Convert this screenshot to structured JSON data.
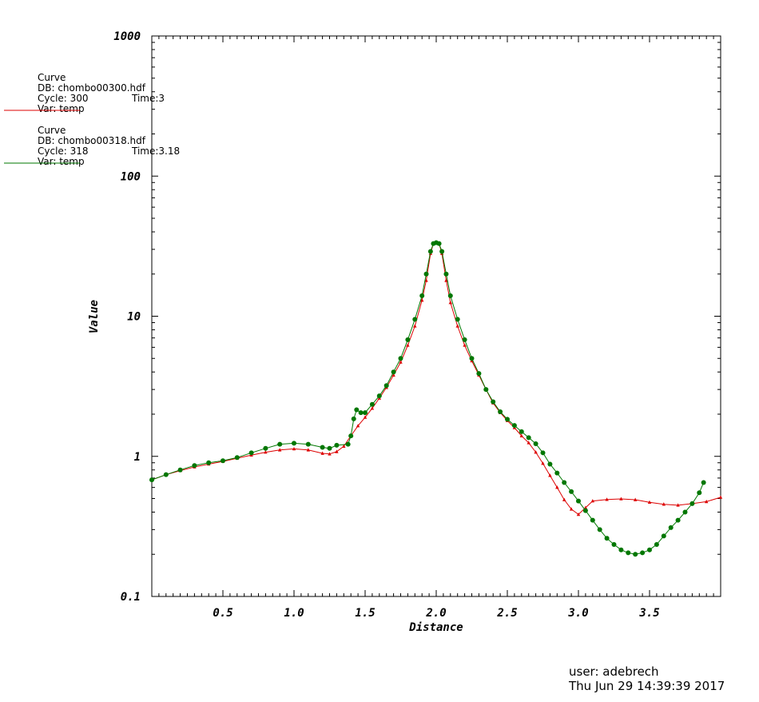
{
  "chart_data": {
    "type": "line",
    "xlabel": "Distance",
    "ylabel": "Value",
    "xlim": [
      0.0,
      4.0
    ],
    "ylim": [
      0.1,
      1000
    ],
    "yscale": "log",
    "x_ticks": [
      0.5,
      1.0,
      1.5,
      2.0,
      2.5,
      3.0,
      3.5
    ],
    "x_tick_labels": [
      "0.5",
      "1.0",
      "1.5",
      "2.0",
      "2.5",
      "3.0",
      "3.5"
    ],
    "y_ticks": [
      0.1,
      1,
      10,
      100,
      1000
    ],
    "y_tick_labels": [
      "0.1",
      "1",
      "10",
      "100",
      "1000"
    ],
    "grid": false,
    "legend_placement": "top-left",
    "series": [
      {
        "name": "Curve",
        "db": "DB: chombo00300.hdf",
        "cycle": "Cycle: 300",
        "time": "Time:3",
        "var": "Var: temp",
        "color": "#dd0000",
        "marker": "triangle",
        "points": [
          [
            0.0,
            0.68
          ],
          [
            0.1,
            0.74
          ],
          [
            0.2,
            0.79
          ],
          [
            0.3,
            0.84
          ],
          [
            0.4,
            0.88
          ],
          [
            0.5,
            0.92
          ],
          [
            0.6,
            0.97
          ],
          [
            0.7,
            1.02
          ],
          [
            0.8,
            1.07
          ],
          [
            0.9,
            1.11
          ],
          [
            1.0,
            1.13
          ],
          [
            1.1,
            1.11
          ],
          [
            1.2,
            1.05
          ],
          [
            1.25,
            1.04
          ],
          [
            1.3,
            1.08
          ],
          [
            1.35,
            1.18
          ],
          [
            1.4,
            1.4
          ],
          [
            1.45,
            1.65
          ],
          [
            1.5,
            1.9
          ],
          [
            1.55,
            2.2
          ],
          [
            1.6,
            2.6
          ],
          [
            1.65,
            3.1
          ],
          [
            1.7,
            3.8
          ],
          [
            1.75,
            4.7
          ],
          [
            1.8,
            6.2
          ],
          [
            1.85,
            8.5
          ],
          [
            1.9,
            13.0
          ],
          [
            1.93,
            18.0
          ],
          [
            1.96,
            28.0
          ],
          [
            1.98,
            33.0
          ],
          [
            2.0,
            33.5
          ],
          [
            2.02,
            33.0
          ],
          [
            2.04,
            28.0
          ],
          [
            2.07,
            18.0
          ],
          [
            2.1,
            12.5
          ],
          [
            2.15,
            8.5
          ],
          [
            2.2,
            6.2
          ],
          [
            2.25,
            4.8
          ],
          [
            2.3,
            3.8
          ],
          [
            2.35,
            3.0
          ],
          [
            2.4,
            2.4
          ],
          [
            2.45,
            2.05
          ],
          [
            2.5,
            1.8
          ],
          [
            2.55,
            1.6
          ],
          [
            2.6,
            1.4
          ],
          [
            2.65,
            1.25
          ],
          [
            2.7,
            1.07
          ],
          [
            2.75,
            0.89
          ],
          [
            2.8,
            0.73
          ],
          [
            2.85,
            0.6
          ],
          [
            2.9,
            0.49
          ],
          [
            2.95,
            0.42
          ],
          [
            3.0,
            0.385
          ],
          [
            3.05,
            0.43
          ],
          [
            3.1,
            0.48
          ],
          [
            3.2,
            0.492
          ],
          [
            3.3,
            0.497
          ],
          [
            3.4,
            0.49
          ],
          [
            3.5,
            0.47
          ],
          [
            3.6,
            0.455
          ],
          [
            3.7,
            0.448
          ],
          [
            3.8,
            0.46
          ],
          [
            3.9,
            0.475
          ],
          [
            4.0,
            0.51
          ]
        ]
      },
      {
        "name": "Curve",
        "db": "DB: chombo00318.hdf",
        "cycle": "Cycle: 318",
        "time": "Time:3.18",
        "var": "Var: temp",
        "color": "#007700",
        "marker": "circle",
        "points": [
          [
            0.0,
            0.68
          ],
          [
            0.1,
            0.74
          ],
          [
            0.2,
            0.8
          ],
          [
            0.3,
            0.86
          ],
          [
            0.4,
            0.9
          ],
          [
            0.5,
            0.93
          ],
          [
            0.6,
            0.98
          ],
          [
            0.7,
            1.06
          ],
          [
            0.8,
            1.14
          ],
          [
            0.9,
            1.22
          ],
          [
            1.0,
            1.24
          ],
          [
            1.1,
            1.22
          ],
          [
            1.2,
            1.16
          ],
          [
            1.25,
            1.14
          ],
          [
            1.3,
            1.2
          ],
          [
            1.38,
            1.22
          ],
          [
            1.4,
            1.4
          ],
          [
            1.42,
            1.85
          ],
          [
            1.44,
            2.15
          ],
          [
            1.47,
            2.05
          ],
          [
            1.5,
            2.05
          ],
          [
            1.55,
            2.35
          ],
          [
            1.6,
            2.7
          ],
          [
            1.65,
            3.2
          ],
          [
            1.7,
            4.0
          ],
          [
            1.75,
            5.0
          ],
          [
            1.8,
            6.8
          ],
          [
            1.85,
            9.5
          ],
          [
            1.9,
            14.0
          ],
          [
            1.93,
            20.0
          ],
          [
            1.96,
            29.0
          ],
          [
            1.98,
            33.0
          ],
          [
            2.0,
            33.5
          ],
          [
            2.02,
            33.0
          ],
          [
            2.04,
            29.0
          ],
          [
            2.07,
            20.0
          ],
          [
            2.1,
            14.0
          ],
          [
            2.15,
            9.5
          ],
          [
            2.2,
            6.8
          ],
          [
            2.25,
            5.0
          ],
          [
            2.3,
            3.9
          ],
          [
            2.35,
            3.0
          ],
          [
            2.4,
            2.45
          ],
          [
            2.45,
            2.08
          ],
          [
            2.5,
            1.84
          ],
          [
            2.55,
            1.66
          ],
          [
            2.6,
            1.5
          ],
          [
            2.65,
            1.36
          ],
          [
            2.7,
            1.23
          ],
          [
            2.75,
            1.06
          ],
          [
            2.8,
            0.88
          ],
          [
            2.85,
            0.76
          ],
          [
            2.9,
            0.65
          ],
          [
            2.95,
            0.56
          ],
          [
            3.0,
            0.48
          ],
          [
            3.05,
            0.41
          ],
          [
            3.1,
            0.35
          ],
          [
            3.15,
            0.3
          ],
          [
            3.2,
            0.26
          ],
          [
            3.25,
            0.235
          ],
          [
            3.3,
            0.215
          ],
          [
            3.35,
            0.205
          ],
          [
            3.4,
            0.2
          ],
          [
            3.45,
            0.205
          ],
          [
            3.5,
            0.215
          ],
          [
            3.55,
            0.235
          ],
          [
            3.6,
            0.27
          ],
          [
            3.65,
            0.31
          ],
          [
            3.7,
            0.35
          ],
          [
            3.75,
            0.4
          ],
          [
            3.8,
            0.46
          ],
          [
            3.85,
            0.55
          ],
          [
            3.88,
            0.65
          ]
        ]
      }
    ]
  },
  "footer": {
    "user": "user: adebrech",
    "date": "Thu Jun 29 14:39:39 2017"
  }
}
